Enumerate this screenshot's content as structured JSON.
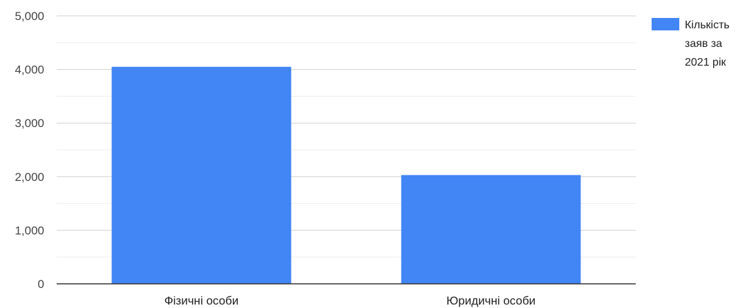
{
  "chart_data": {
    "type": "bar",
    "categories": [
      "Фізичні особи",
      "Юридичні особи"
    ],
    "series": [
      {
        "name": "Кількість заяв за 2021 рік",
        "values": [
          4050,
          2030
        ]
      }
    ],
    "yticks": [
      "0",
      "1,000",
      "2,000",
      "3,000",
      "4,000",
      "5,000"
    ],
    "ylim": [
      0,
      5000
    ],
    "grid": true,
    "legend_position": "right",
    "bar_color": "#4285f4",
    "legend_lines": [
      "Кількість",
      "заяв за",
      "2021 рік"
    ]
  }
}
